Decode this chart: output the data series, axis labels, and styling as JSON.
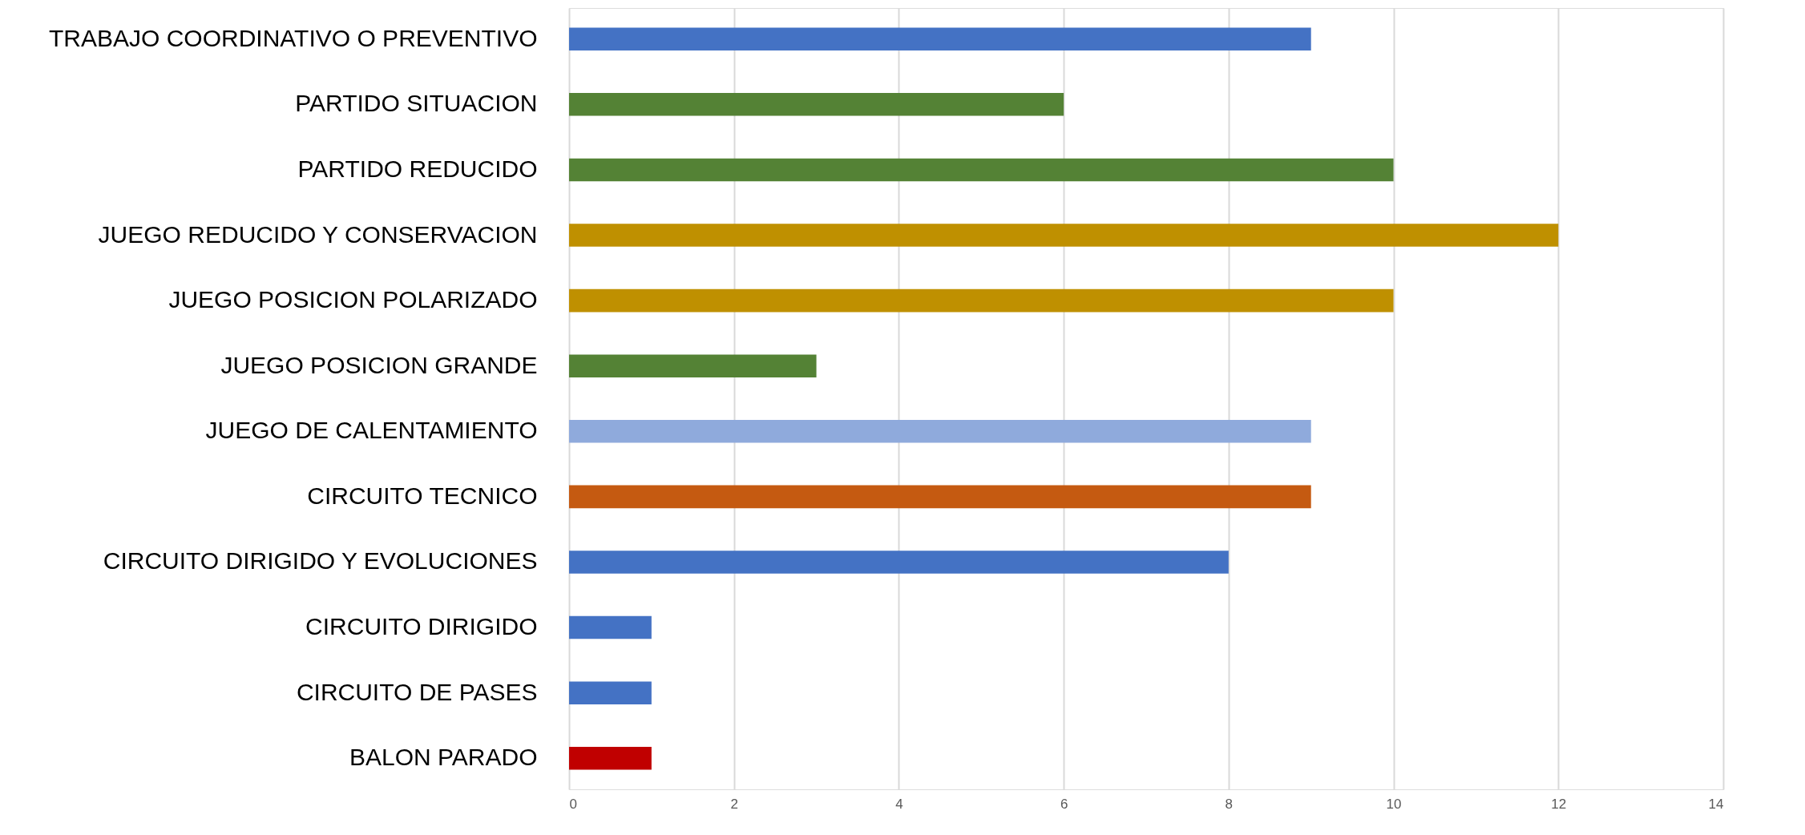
{
  "chart_data": {
    "type": "bar",
    "orientation": "horizontal",
    "categories": [
      "TRABAJO COORDINATIVO O PREVENTIVO",
      "PARTIDO SITUACION",
      "PARTIDO REDUCIDO",
      "JUEGO REDUCIDO Y CONSERVACION",
      "JUEGO POSICION POLARIZADO",
      "JUEGO POSICION GRANDE",
      "JUEGO DE CALENTAMIENTO",
      "CIRCUITO TECNICO",
      "CIRCUITO DIRIGIDO Y EVOLUCIONES",
      "CIRCUITO DIRIGIDO",
      "CIRCUITO DE PASES",
      "BALON PARADO"
    ],
    "values": [
      9,
      6,
      10,
      12,
      10,
      3,
      9,
      9,
      8,
      1,
      1,
      1
    ],
    "colors": [
      "#4472c4",
      "#548235",
      "#548235",
      "#bf9000",
      "#bf9000",
      "#548235",
      "#8faadc",
      "#c55a11",
      "#4472c4",
      "#4472c4",
      "#4472c4",
      "#c00000"
    ],
    "xlim": [
      0,
      14
    ],
    "xticks": [
      0,
      2,
      4,
      6,
      8,
      10,
      12,
      14
    ],
    "grid": "x"
  }
}
